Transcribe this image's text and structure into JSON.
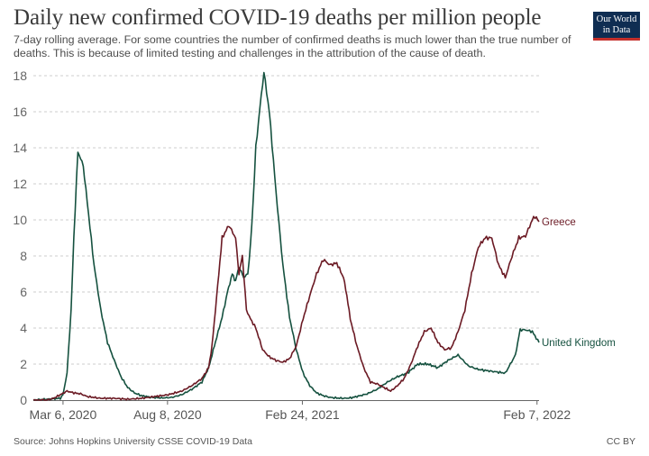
{
  "header": {
    "title": "Daily new confirmed COVID-19 deaths per million people",
    "subtitle": "7-day rolling average. For some countries the number of confirmed deaths is much lower than the true number of deaths. This is because of limited testing and challenges in the attribution of the cause of death.",
    "logo_line1": "Our World",
    "logo_line2": "in Data"
  },
  "footer": {
    "source": "Source: Johns Hopkins University CSSE COVID-19 Data",
    "license": "CC BY"
  },
  "colors": {
    "greece": "#6b1a24",
    "uk": "#15513f",
    "grid": "#cccccc",
    "axis": "#666666"
  },
  "chart_data": {
    "type": "line",
    "title": "Daily new confirmed COVID-19 deaths per million people",
    "xlabel": "",
    "ylabel": "",
    "x_unit": "days since Jan 22, 2020",
    "xlim": [
      0,
      750
    ],
    "ylim": [
      0,
      18
    ],
    "y_ticks": [
      0,
      2,
      4,
      6,
      8,
      10,
      12,
      14,
      16,
      18
    ],
    "x_ticks": [
      {
        "x": 44,
        "label": "Mar 6, 2020"
      },
      {
        "x": 199,
        "label": "Aug 8, 2020"
      },
      {
        "x": 399,
        "label": "Feb 24, 2021"
      },
      {
        "x": 747,
        "label": "Feb 7, 2022"
      }
    ],
    "grid": true,
    "series": [
      {
        "name": "United Kingdom",
        "x": [
          0,
          40,
          44,
          50,
          56,
          60,
          66,
          74,
          80,
          90,
          100,
          110,
          120,
          130,
          140,
          150,
          160,
          175,
          190,
          205,
          220,
          235,
          250,
          260,
          265,
          272,
          280,
          288,
          295,
          300,
          305,
          312,
          318,
          322,
          326,
          330,
          336,
          342,
          350,
          360,
          370,
          380,
          390,
          400,
          410,
          420,
          430,
          440,
          450,
          460,
          470,
          480,
          495,
          510,
          525,
          540,
          555,
          570,
          585,
          600,
          615,
          630,
          645,
          660,
          680,
          700,
          715,
          722,
          730,
          740,
          750
        ],
        "values": [
          0,
          0.1,
          0.3,
          1.5,
          5,
          9,
          13.8,
          13,
          11,
          7.5,
          5,
          3.2,
          2.2,
          1.3,
          0.7,
          0.4,
          0.25,
          0.15,
          0.12,
          0.15,
          0.3,
          0.6,
          1,
          1.8,
          2.5,
          3.5,
          4.6,
          6,
          7,
          6.6,
          7.4,
          6.8,
          7,
          8.6,
          11,
          14,
          16.2,
          18.2,
          16,
          11.5,
          7.5,
          4.6,
          2.8,
          1.5,
          0.8,
          0.4,
          0.25,
          0.15,
          0.12,
          0.1,
          0.12,
          0.2,
          0.35,
          0.6,
          1,
          1.3,
          1.5,
          2,
          2,
          1.8,
          2.2,
          2.5,
          1.9,
          1.7,
          1.6,
          1.5,
          2.5,
          3.9,
          3.9,
          3.8,
          3.2
        ]
      },
      {
        "name": "Greece",
        "x": [
          0,
          20,
          30,
          40,
          50,
          60,
          70,
          80,
          100,
          120,
          140,
          160,
          180,
          200,
          220,
          235,
          250,
          260,
          265,
          270,
          275,
          280,
          290,
          300,
          305,
          310,
          316,
          322,
          330,
          340,
          350,
          360,
          370,
          380,
          390,
          400,
          410,
          420,
          430,
          440,
          450,
          460,
          465,
          470,
          480,
          490,
          500,
          510,
          520,
          530,
          540,
          550,
          560,
          570,
          580,
          590,
          600,
          610,
          620,
          630,
          640,
          650,
          660,
          670,
          680,
          690,
          700,
          710,
          720,
          730,
          740,
          744,
          750
        ],
        "values": [
          0,
          0,
          0.1,
          0.3,
          0.5,
          0.4,
          0.35,
          0.2,
          0.1,
          0.1,
          0.05,
          0.1,
          0.2,
          0.3,
          0.5,
          0.8,
          1.2,
          1.8,
          3,
          5,
          7,
          9,
          9.7,
          9,
          7,
          8,
          5,
          4.5,
          4,
          2.8,
          2.4,
          2.2,
          2.1,
          2.3,
          3,
          4.5,
          5.8,
          7,
          7.8,
          7.5,
          7.6,
          6.8,
          5.8,
          4.5,
          3,
          1.8,
          1,
          0.9,
          0.7,
          0.5,
          0.8,
          1.2,
          2,
          3,
          3.8,
          4,
          3.2,
          2.8,
          2.9,
          3.8,
          5,
          7,
          8.5,
          9,
          9,
          7.5,
          6.8,
          8,
          9,
          9.1,
          10,
          10.2,
          9.9
        ]
      }
    ]
  }
}
